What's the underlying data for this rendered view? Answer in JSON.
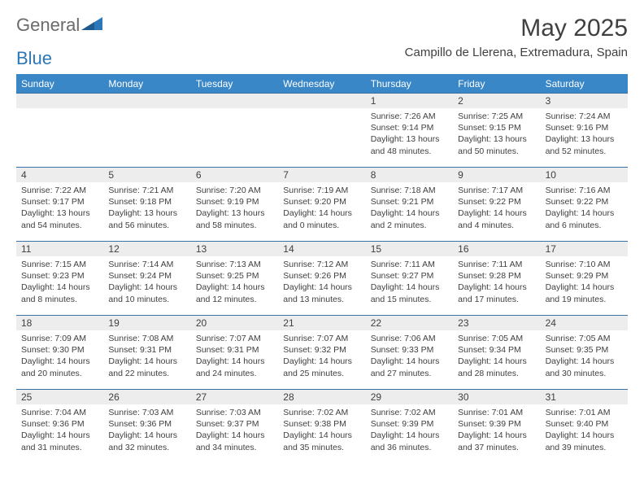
{
  "brand": {
    "part1": "General",
    "part2": "Blue"
  },
  "title": "May 2025",
  "location": "Campillo de Llerena, Extremadura, Spain",
  "colors": {
    "header_bg": "#3a87c8",
    "header_text": "#ffffff",
    "rule": "#3a72a8",
    "daynum_bg": "#ededed",
    "text": "#404040",
    "brand_gray": "#6b6b6b",
    "brand_blue": "#2c77b8",
    "page_bg": "#ffffff"
  },
  "dayNames": [
    "Sunday",
    "Monday",
    "Tuesday",
    "Wednesday",
    "Thursday",
    "Friday",
    "Saturday"
  ],
  "weeks": [
    [
      null,
      null,
      null,
      null,
      {
        "n": "1",
        "sunrise": "7:26 AM",
        "sunset": "9:14 PM",
        "dl1": "Daylight: 13 hours",
        "dl2": "and 48 minutes."
      },
      {
        "n": "2",
        "sunrise": "7:25 AM",
        "sunset": "9:15 PM",
        "dl1": "Daylight: 13 hours",
        "dl2": "and 50 minutes."
      },
      {
        "n": "3",
        "sunrise": "7:24 AM",
        "sunset": "9:16 PM",
        "dl1": "Daylight: 13 hours",
        "dl2": "and 52 minutes."
      }
    ],
    [
      {
        "n": "4",
        "sunrise": "7:22 AM",
        "sunset": "9:17 PM",
        "dl1": "Daylight: 13 hours",
        "dl2": "and 54 minutes."
      },
      {
        "n": "5",
        "sunrise": "7:21 AM",
        "sunset": "9:18 PM",
        "dl1": "Daylight: 13 hours",
        "dl2": "and 56 minutes."
      },
      {
        "n": "6",
        "sunrise": "7:20 AM",
        "sunset": "9:19 PM",
        "dl1": "Daylight: 13 hours",
        "dl2": "and 58 minutes."
      },
      {
        "n": "7",
        "sunrise": "7:19 AM",
        "sunset": "9:20 PM",
        "dl1": "Daylight: 14 hours",
        "dl2": "and 0 minutes."
      },
      {
        "n": "8",
        "sunrise": "7:18 AM",
        "sunset": "9:21 PM",
        "dl1": "Daylight: 14 hours",
        "dl2": "and 2 minutes."
      },
      {
        "n": "9",
        "sunrise": "7:17 AM",
        "sunset": "9:22 PM",
        "dl1": "Daylight: 14 hours",
        "dl2": "and 4 minutes."
      },
      {
        "n": "10",
        "sunrise": "7:16 AM",
        "sunset": "9:22 PM",
        "dl1": "Daylight: 14 hours",
        "dl2": "and 6 minutes."
      }
    ],
    [
      {
        "n": "11",
        "sunrise": "7:15 AM",
        "sunset": "9:23 PM",
        "dl1": "Daylight: 14 hours",
        "dl2": "and 8 minutes."
      },
      {
        "n": "12",
        "sunrise": "7:14 AM",
        "sunset": "9:24 PM",
        "dl1": "Daylight: 14 hours",
        "dl2": "and 10 minutes."
      },
      {
        "n": "13",
        "sunrise": "7:13 AM",
        "sunset": "9:25 PM",
        "dl1": "Daylight: 14 hours",
        "dl2": "and 12 minutes."
      },
      {
        "n": "14",
        "sunrise": "7:12 AM",
        "sunset": "9:26 PM",
        "dl1": "Daylight: 14 hours",
        "dl2": "and 13 minutes."
      },
      {
        "n": "15",
        "sunrise": "7:11 AM",
        "sunset": "9:27 PM",
        "dl1": "Daylight: 14 hours",
        "dl2": "and 15 minutes."
      },
      {
        "n": "16",
        "sunrise": "7:11 AM",
        "sunset": "9:28 PM",
        "dl1": "Daylight: 14 hours",
        "dl2": "and 17 minutes."
      },
      {
        "n": "17",
        "sunrise": "7:10 AM",
        "sunset": "9:29 PM",
        "dl1": "Daylight: 14 hours",
        "dl2": "and 19 minutes."
      }
    ],
    [
      {
        "n": "18",
        "sunrise": "7:09 AM",
        "sunset": "9:30 PM",
        "dl1": "Daylight: 14 hours",
        "dl2": "and 20 minutes."
      },
      {
        "n": "19",
        "sunrise": "7:08 AM",
        "sunset": "9:31 PM",
        "dl1": "Daylight: 14 hours",
        "dl2": "and 22 minutes."
      },
      {
        "n": "20",
        "sunrise": "7:07 AM",
        "sunset": "9:31 PM",
        "dl1": "Daylight: 14 hours",
        "dl2": "and 24 minutes."
      },
      {
        "n": "21",
        "sunrise": "7:07 AM",
        "sunset": "9:32 PM",
        "dl1": "Daylight: 14 hours",
        "dl2": "and 25 minutes."
      },
      {
        "n": "22",
        "sunrise": "7:06 AM",
        "sunset": "9:33 PM",
        "dl1": "Daylight: 14 hours",
        "dl2": "and 27 minutes."
      },
      {
        "n": "23",
        "sunrise": "7:05 AM",
        "sunset": "9:34 PM",
        "dl1": "Daylight: 14 hours",
        "dl2": "and 28 minutes."
      },
      {
        "n": "24",
        "sunrise": "7:05 AM",
        "sunset": "9:35 PM",
        "dl1": "Daylight: 14 hours",
        "dl2": "and 30 minutes."
      }
    ],
    [
      {
        "n": "25",
        "sunrise": "7:04 AM",
        "sunset": "9:36 PM",
        "dl1": "Daylight: 14 hours",
        "dl2": "and 31 minutes."
      },
      {
        "n": "26",
        "sunrise": "7:03 AM",
        "sunset": "9:36 PM",
        "dl1": "Daylight: 14 hours",
        "dl2": "and 32 minutes."
      },
      {
        "n": "27",
        "sunrise": "7:03 AM",
        "sunset": "9:37 PM",
        "dl1": "Daylight: 14 hours",
        "dl2": "and 34 minutes."
      },
      {
        "n": "28",
        "sunrise": "7:02 AM",
        "sunset": "9:38 PM",
        "dl1": "Daylight: 14 hours",
        "dl2": "and 35 minutes."
      },
      {
        "n": "29",
        "sunrise": "7:02 AM",
        "sunset": "9:39 PM",
        "dl1": "Daylight: 14 hours",
        "dl2": "and 36 minutes."
      },
      {
        "n": "30",
        "sunrise": "7:01 AM",
        "sunset": "9:39 PM",
        "dl1": "Daylight: 14 hours",
        "dl2": "and 37 minutes."
      },
      {
        "n": "31",
        "sunrise": "7:01 AM",
        "sunset": "9:40 PM",
        "dl1": "Daylight: 14 hours",
        "dl2": "and 39 minutes."
      }
    ]
  ],
  "labels": {
    "sunrise": "Sunrise: ",
    "sunset": "Sunset: "
  }
}
